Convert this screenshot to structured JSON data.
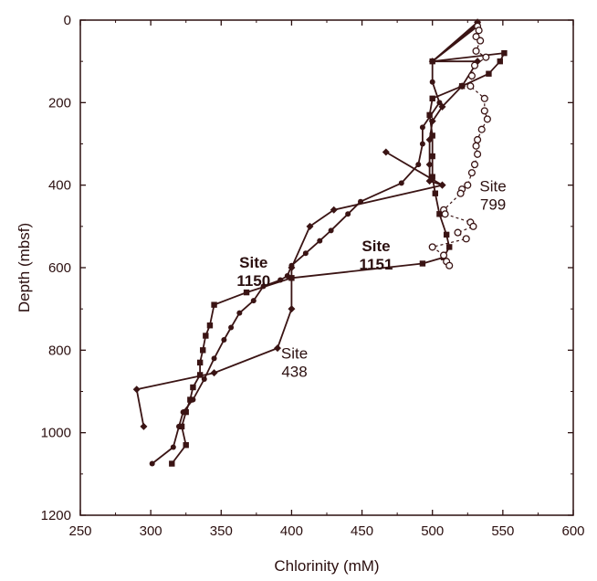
{
  "chart_data": {
    "type": "line",
    "xlabel": "Chlorinity (mM)",
    "ylabel": "Depth (mbsf)",
    "xlim": [
      250,
      600
    ],
    "ylim": [
      0,
      1200
    ],
    "y_inverted": true,
    "x_ticks": [
      "250",
      "300",
      "350",
      "400",
      "450",
      "500",
      "550",
      "600"
    ],
    "y_ticks": [
      "0",
      "200",
      "400",
      "600",
      "800",
      "1000",
      "1200"
    ],
    "grid": false,
    "colors": {
      "ink": "#2b0f0f",
      "line": "#3a1414"
    },
    "series": [
      {
        "name": "Site 438",
        "marker": "diamond",
        "points": [
          [
            532,
            5
          ],
          [
            500,
            100
          ],
          [
            532,
            100
          ],
          [
            521,
            160
          ],
          [
            507,
            210
          ],
          [
            500,
            245
          ],
          [
            498,
            290
          ],
          [
            498,
            350
          ],
          [
            498,
            390
          ],
          [
            507,
            400
          ],
          [
            467,
            320
          ],
          [
            507,
            400
          ],
          [
            430,
            460
          ],
          [
            413,
            500
          ],
          [
            400,
            600
          ],
          [
            400,
            700
          ],
          [
            390,
            795
          ],
          [
            345,
            855
          ],
          [
            290,
            895
          ],
          [
            295,
            985
          ]
        ]
      },
      {
        "name": "Site 1150",
        "marker": "square",
        "points": [
          [
            532,
            10
          ],
          [
            500,
            100
          ],
          [
            551,
            80
          ],
          [
            548,
            100
          ],
          [
            540,
            130
          ],
          [
            521,
            160
          ],
          [
            500,
            190
          ],
          [
            498,
            230
          ],
          [
            500,
            280
          ],
          [
            500,
            330
          ],
          [
            500,
            380
          ],
          [
            502,
            420
          ],
          [
            505,
            470
          ],
          [
            510,
            520
          ],
          [
            512,
            550
          ],
          [
            508,
            575
          ],
          [
            493,
            590
          ],
          [
            400,
            625
          ],
          [
            368,
            660
          ],
          [
            345,
            690
          ],
          [
            342,
            740
          ],
          [
            339,
            765
          ],
          [
            337,
            800
          ],
          [
            335,
            830
          ],
          [
            335,
            860
          ],
          [
            330,
            890
          ],
          [
            328,
            920
          ],
          [
            325,
            950
          ],
          [
            322,
            985
          ],
          [
            325,
            1030
          ],
          [
            315,
            1075
          ]
        ]
      },
      {
        "name": "Site 1151",
        "marker": "circle",
        "points": [
          [
            532,
            15
          ],
          [
            500,
            100
          ],
          [
            500,
            150
          ],
          [
            505,
            200
          ],
          [
            493,
            260
          ],
          [
            493,
            300
          ],
          [
            490,
            350
          ],
          [
            478,
            395
          ],
          [
            449,
            440
          ],
          [
            440,
            470
          ],
          [
            428,
            510
          ],
          [
            420,
            535
          ],
          [
            410,
            565
          ],
          [
            400,
            595
          ],
          [
            397,
            620
          ],
          [
            392,
            630
          ],
          [
            380,
            645
          ],
          [
            373,
            680
          ],
          [
            363,
            710
          ],
          [
            357,
            745
          ],
          [
            352,
            775
          ],
          [
            345,
            820
          ],
          [
            338,
            870
          ],
          [
            330,
            920
          ],
          [
            323,
            950
          ],
          [
            320,
            985
          ],
          [
            316,
            1035
          ],
          [
            301,
            1075
          ]
        ]
      },
      {
        "name": "Site 799",
        "marker": "open-circle",
        "dashed": true,
        "points": [
          [
            532,
            15
          ],
          [
            533,
            25
          ],
          [
            531,
            40
          ],
          [
            534,
            50
          ],
          [
            531,
            75
          ],
          [
            538,
            90
          ],
          [
            530,
            110
          ],
          [
            528,
            135
          ],
          [
            527,
            160
          ],
          [
            537,
            190
          ],
          [
            537,
            220
          ],
          [
            539,
            240
          ],
          [
            535,
            265
          ],
          [
            532,
            290
          ],
          [
            531,
            305
          ],
          [
            532,
            325
          ],
          [
            530,
            350
          ],
          [
            528,
            370
          ],
          [
            525,
            400
          ],
          [
            521,
            410
          ],
          [
            520,
            420
          ],
          [
            508,
            460
          ],
          [
            509,
            470
          ],
          [
            527,
            490
          ],
          [
            529,
            500
          ],
          [
            518,
            515
          ],
          [
            524,
            530
          ],
          [
            500,
            550
          ],
          [
            508,
            570
          ],
          [
            510,
            585
          ],
          [
            512,
            595
          ]
        ]
      }
    ],
    "annotations": [
      {
        "lines": [
          "Site",
          "799"
        ],
        "x": 543,
        "y": 415,
        "bold": false
      },
      {
        "lines": [
          "Site",
          "1151"
        ],
        "x": 460,
        "y": 560,
        "bold": true
      },
      {
        "lines": [
          "Site",
          "1150"
        ],
        "x": 373,
        "y": 600,
        "bold": true
      },
      {
        "lines": [
          "Site",
          "438"
        ],
        "x": 402,
        "y": 820,
        "bold": false
      }
    ]
  }
}
